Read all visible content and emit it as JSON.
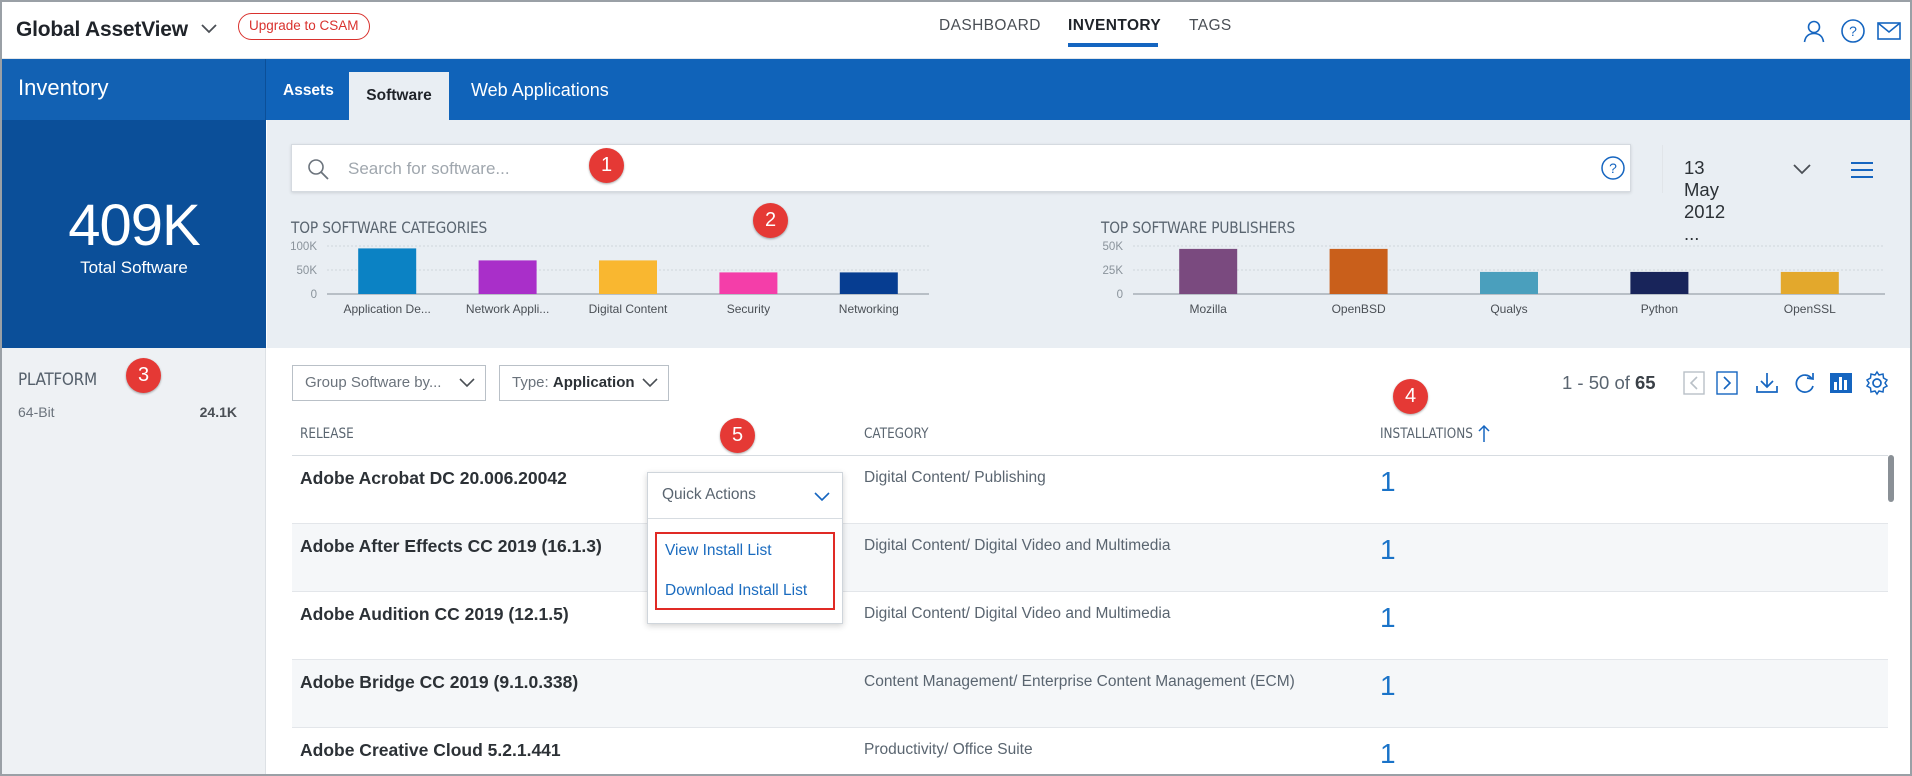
{
  "app": {
    "title": "Global AssetView",
    "upgrade_label": "Upgrade to CSAM"
  },
  "top_nav": {
    "items": [
      {
        "label": "DASHBOARD",
        "active": false
      },
      {
        "label": "INVENTORY",
        "active": true
      },
      {
        "label": "TAGS",
        "active": false
      }
    ],
    "icons": [
      "user-icon",
      "help-icon",
      "mail-icon"
    ]
  },
  "section": {
    "title": "Inventory",
    "tabs": [
      {
        "label": "Assets",
        "active": false
      },
      {
        "label": "Software",
        "active": true
      },
      {
        "label": "Web Applications",
        "active": false
      }
    ]
  },
  "summary": {
    "value": "409K",
    "label": "Total Software"
  },
  "filters": {
    "platform_title": "PLATFORM",
    "platform_items": [
      {
        "label": "64-Bit",
        "count": "24.1K"
      }
    ]
  },
  "search": {
    "placeholder": "Search for software...",
    "value": "",
    "date": "13 May 2012 ..."
  },
  "chart_data": [
    {
      "type": "bar",
      "title": "TOP SOFTWARE CATEGORIES",
      "categories": [
        "Application De...",
        "Network Appli...",
        "Digital Content",
        "Security",
        "Networking"
      ],
      "values": [
        95000,
        70000,
        70000,
        45000,
        45000
      ],
      "colors": [
        "#0b82c4",
        "#a92fc9",
        "#f9b730",
        "#f43ea9",
        "#063d91"
      ],
      "y_ticks": [
        "100K",
        "50K",
        "0"
      ],
      "ylim": [
        0,
        100000
      ],
      "grid": true,
      "legend": "none"
    },
    {
      "type": "bar",
      "title": "TOP SOFTWARE PUBLISHERS",
      "categories": [
        "Mozilla",
        "OpenBSD",
        "Qualys",
        "Python",
        "OpenSSL"
      ],
      "values": [
        47000,
        47000,
        23000,
        23000,
        23000
      ],
      "colors": [
        "#7a4a7f",
        "#c95f1b",
        "#4a9fbd",
        "#18245a",
        "#e3a82c"
      ],
      "y_ticks": [
        "50K",
        "25K",
        "0"
      ],
      "ylim": [
        0,
        50000
      ],
      "grid": true,
      "legend": "none"
    }
  ],
  "toolbar": {
    "group_by_label": "Group Software by...",
    "type_prefix": "Type: ",
    "type_value": "Application",
    "pager_range": "1 - 50 of ",
    "pager_total": "65"
  },
  "table": {
    "columns": [
      "RELEASE",
      "CATEGORY",
      "INSTALLATIONS"
    ],
    "rows": [
      {
        "release": "Adobe Acrobat DC 20.006.20042",
        "category": "Digital Content/ Publishing",
        "installations": "1"
      },
      {
        "release": "Adobe After Effects CC 2019 (16.1.3)",
        "category": "Digital Content/ Digital Video and Multimedia",
        "installations": "1"
      },
      {
        "release": "Adobe Audition CC 2019 (12.1.5)",
        "category": "Digital Content/ Digital Video and Multimedia",
        "installations": "1"
      },
      {
        "release": "Adobe Bridge CC 2019 (9.1.0.338)",
        "category": "Content Management/ Enterprise Content Management (ECM)",
        "installations": "1"
      },
      {
        "release": "Adobe Creative Cloud 5.2.1.441",
        "category": "Productivity/ Office Suite",
        "installations": "1"
      }
    ]
  },
  "quick_actions": {
    "label": "Quick Actions",
    "items": [
      "View Install List",
      "Download Install List"
    ]
  },
  "callouts": [
    "1",
    "2",
    "3",
    "4",
    "5"
  ]
}
